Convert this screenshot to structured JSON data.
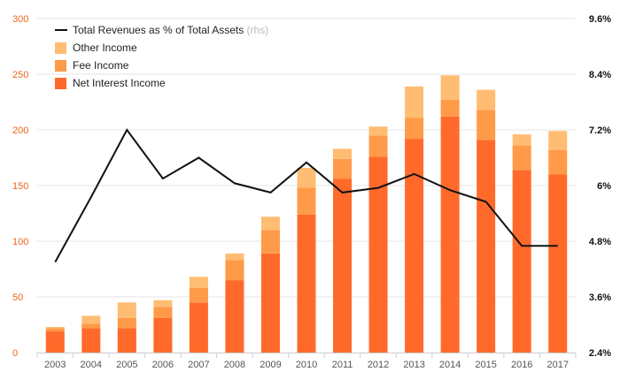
{
  "chart_data": {
    "type": "bar",
    "stacked": true,
    "categories": [
      "2003",
      "2004",
      "2005",
      "2006",
      "2007",
      "2008",
      "2009",
      "2010",
      "2011",
      "2012",
      "2013",
      "2014",
      "2015",
      "2016",
      "2017"
    ],
    "series": [
      {
        "name": "Net Interest Income",
        "type": "bar",
        "axis": "left",
        "color": "#ff6a2b",
        "values": [
          19,
          22,
          22,
          31,
          45,
          65,
          89,
          124,
          156,
          176,
          192,
          212,
          191,
          164,
          160
        ]
      },
      {
        "name": "Fee Income",
        "type": "bar",
        "axis": "left",
        "color": "#ff9a48",
        "values": [
          3,
          4,
          9,
          10,
          13,
          18,
          21,
          24,
          18,
          19,
          19,
          15,
          27,
          22,
          22
        ]
      },
      {
        "name": "Other Income",
        "type": "bar",
        "axis": "left",
        "color": "#ffbd73",
        "values": [
          1,
          7,
          14,
          6,
          10,
          6,
          12,
          18,
          9,
          8,
          28,
          22,
          18,
          10,
          17
        ]
      },
      {
        "name": "Total Revenues as % of Total Assets",
        "type": "line",
        "axis": "right",
        "color": "#111111",
        "values": [
          4.35,
          5.75,
          7.2,
          6.15,
          6.6,
          6.05,
          5.85,
          6.5,
          5.85,
          5.95,
          6.25,
          5.9,
          5.65,
          4.7,
          4.7
        ]
      }
    ],
    "y_left": {
      "min": 0,
      "max": 300,
      "ticks": [
        0,
        50,
        100,
        150,
        200,
        250,
        300
      ],
      "tick_labels": [
        "0",
        "50",
        "100",
        "150",
        "200",
        "250",
        "300"
      ],
      "color": "#f0641e"
    },
    "y_right": {
      "min": 2.4,
      "max": 9.6,
      "ticks": [
        2.4,
        3.6,
        4.8,
        6.0,
        7.2,
        8.4,
        9.6
      ],
      "tick_labels": [
        "2.4%",
        "3.6%",
        "4.8%",
        "6%",
        "7.2%",
        "8.4%",
        "9.6%"
      ],
      "color": "#111111"
    },
    "grid": true,
    "legend": {
      "placement": "top-left",
      "items": [
        {
          "label": "Total Revenues as % of Total Assets",
          "suffix": " (rhs)",
          "marker": "line",
          "color": "#111111"
        },
        {
          "label": "Other Income",
          "suffix": "",
          "marker": "square",
          "color": "#ffbd73"
        },
        {
          "label": "Fee Income",
          "suffix": "",
          "marker": "square",
          "color": "#ff9a48"
        },
        {
          "label": "Net Interest Income",
          "suffix": "",
          "marker": "square",
          "color": "#ff6a2b"
        }
      ]
    },
    "title": "",
    "xlabel": "",
    "ylabel": ""
  }
}
